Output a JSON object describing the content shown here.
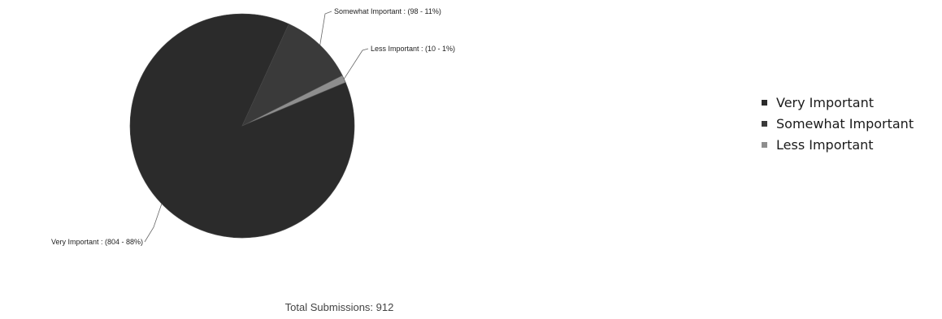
{
  "chart_data": {
    "type": "pie",
    "title": "",
    "slices": [
      {
        "label": "Very Important",
        "value": 804,
        "percent": 88,
        "color": "#2b2b2b",
        "label_text": "Very Important : (804 - 88%)"
      },
      {
        "label": "Somewhat Important",
        "value": 98,
        "percent": 11,
        "color": "#3a3a3a",
        "label_text": "Somewhat Important : (98 - 11%)"
      },
      {
        "label": "Less Important",
        "value": 10,
        "percent": 1,
        "color": "#8e8e8e",
        "label_text": "Less Important : (10 - 1%)"
      }
    ],
    "legend_placement": "right"
  },
  "legend": {
    "items": [
      {
        "label": "Very Important",
        "color": "#2b2b2b"
      },
      {
        "label": "Somewhat Important",
        "color": "#3a3a3a"
      },
      {
        "label": "Less Important",
        "color": "#8e8e8e"
      }
    ]
  },
  "footer": {
    "total_text": "Total Submissions: 912"
  }
}
